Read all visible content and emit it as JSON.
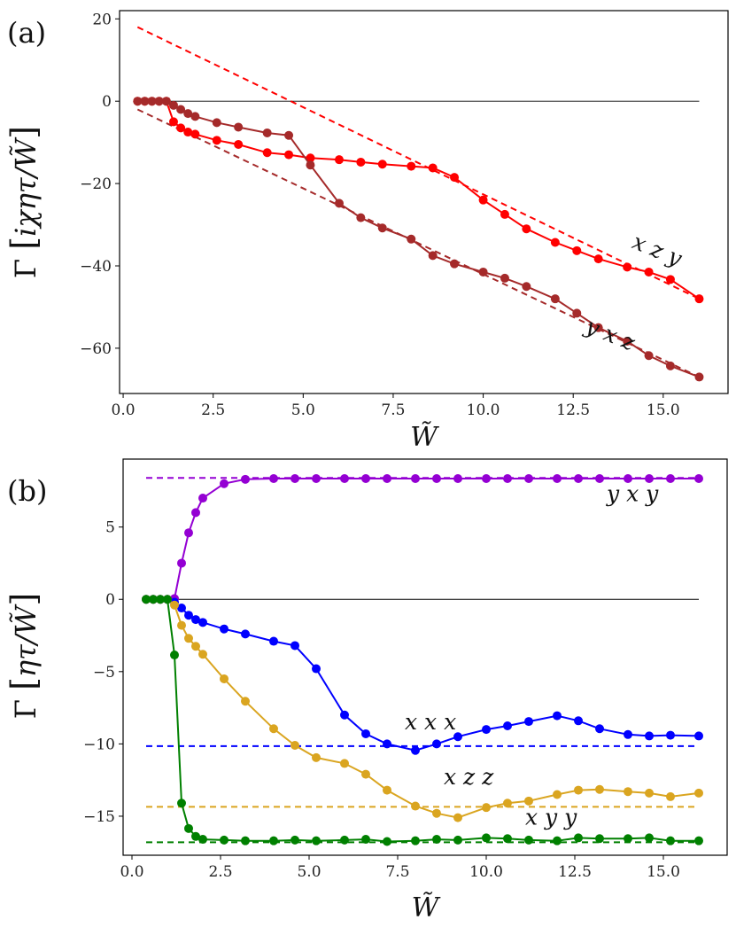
{
  "chart_data": [
    {
      "type": "line",
      "panel": "(a)",
      "xlabel": "W̃",
      "ylabel_prefix": "Γ",
      "ylabel_inner": "iχητ/W̃",
      "xlim": [
        -0.1,
        16.8
      ],
      "ylim": [
        -71,
        22
      ],
      "xticks": [
        "0.0",
        "2.5",
        "5.0",
        "7.5",
        "10.0",
        "12.5",
        "15.0"
      ],
      "xtick_values": [
        0,
        2.5,
        5,
        7.5,
        10,
        12.5,
        15
      ],
      "yticks": [
        "20",
        "0",
        "−20",
        "−40",
        "−60"
      ],
      "ytick_values": [
        20,
        0,
        -20,
        -40,
        -60
      ],
      "zero_line": true,
      "series": [
        {
          "name": "x z y",
          "color": "#ff0000",
          "x": [
            0.4,
            0.6,
            0.8,
            1.0,
            1.2,
            1.4,
            1.6,
            1.8,
            2.0,
            2.6,
            3.2,
            4.0,
            4.6,
            5.2,
            6.0,
            6.6,
            7.2,
            8.0,
            8.6,
            9.2,
            10.0,
            10.6,
            11.2,
            12.0,
            12.6,
            13.2,
            14.0,
            14.6,
            15.2,
            16.0
          ],
          "y": [
            0,
            0,
            0,
            0,
            0,
            -5,
            -6.5,
            -7.5,
            -8,
            -9.5,
            -10.5,
            -12.5,
            -13,
            -13.8,
            -14.2,
            -14.8,
            -15.3,
            -15.8,
            -16.2,
            -18.5,
            -24,
            -27.5,
            -31,
            -34.3,
            -36.3,
            -38.3,
            -40.3,
            -41.5,
            -43.3,
            -48
          ]
        },
        {
          "name": "y x z",
          "color": "#a52a2a",
          "x": [
            0.4,
            0.6,
            0.8,
            1.0,
            1.2,
            1.4,
            1.6,
            1.8,
            2.0,
            2.6,
            3.2,
            4.0,
            4.6,
            5.2,
            6.0,
            6.6,
            7.2,
            8.0,
            8.6,
            9.2,
            10.0,
            10.6,
            11.2,
            12.0,
            12.6,
            13.2,
            14.0,
            14.6,
            15.2,
            16.0
          ],
          "y": [
            0,
            0,
            0,
            0,
            0,
            -1,
            -2,
            -3,
            -3.7,
            -5.2,
            -6.3,
            -7.7,
            -8.3,
            -15.5,
            -24.8,
            -28.3,
            -30.8,
            -33.5,
            -37.5,
            -39.5,
            -41.5,
            -43,
            -45,
            -48,
            -51.5,
            -55,
            -58.3,
            -61.8,
            -64.3,
            -67
          ]
        }
      ],
      "fit_lines": [
        {
          "color": "#ff0000",
          "x": [
            0.4,
            16.0
          ],
          "y": [
            18,
            -48
          ]
        },
        {
          "color": "#a52a2a",
          "x": [
            0.4,
            16.0
          ],
          "y": [
            -2,
            -67
          ]
        }
      ],
      "annotations": [
        {
          "text": "x z y",
          "x": 14.1,
          "y": -35.5,
          "angle": 22
        },
        {
          "text": "y x z",
          "x": 12.8,
          "y": -56,
          "angle": 22
        }
      ]
    },
    {
      "type": "line",
      "panel": "(b)",
      "xlabel": "W̃",
      "ylabel_prefix": "Γ",
      "ylabel_inner": "ητ/W̃",
      "xlim": [
        -0.25,
        16.8
      ],
      "ylim": [
        -17.7,
        9.7
      ],
      "xticks": [
        "0.0",
        "2.5",
        "5.0",
        "7.5",
        "10.0",
        "12.5",
        "15.0"
      ],
      "xtick_values": [
        0,
        2.5,
        5,
        7.5,
        10,
        12.5,
        15
      ],
      "yticks": [
        "5",
        "0",
        "−5",
        "−10",
        "−15"
      ],
      "ytick_values": [
        5,
        0,
        -5,
        -10,
        -15
      ],
      "zero_line": true,
      "series": [
        {
          "name": "y x y",
          "color": "#9400d3",
          "x": [
            0.4,
            0.6,
            0.8,
            1.0,
            1.2,
            1.4,
            1.6,
            1.8,
            2.0,
            2.6,
            3.2,
            4.0,
            4.6,
            5.2,
            6.0,
            6.6,
            7.2,
            8.0,
            8.6,
            9.2,
            10.0,
            10.6,
            11.2,
            12.0,
            12.6,
            13.2,
            14.0,
            14.6,
            15.2,
            16.0
          ],
          "y": [
            0,
            0,
            0,
            0,
            0.05,
            2.5,
            4.6,
            6.0,
            7.0,
            8.0,
            8.3,
            8.35,
            8.35,
            8.35,
            8.35,
            8.35,
            8.35,
            8.35,
            8.35,
            8.35,
            8.35,
            8.35,
            8.35,
            8.35,
            8.35,
            8.35,
            8.35,
            8.35,
            8.35,
            8.35
          ]
        },
        {
          "name": "x x x",
          "color": "#0000ff",
          "x": [
            0.4,
            0.6,
            0.8,
            1.0,
            1.2,
            1.4,
            1.6,
            1.8,
            2.0,
            2.6,
            3.2,
            4.0,
            4.6,
            5.2,
            6.0,
            6.6,
            7.2,
            8.0,
            8.6,
            9.2,
            10.0,
            10.6,
            11.2,
            12.0,
            12.6,
            13.2,
            14.0,
            14.6,
            15.2,
            16.0
          ],
          "y": [
            0,
            0,
            0,
            0,
            -0.2,
            -0.6,
            -1.1,
            -1.4,
            -1.6,
            -2.05,
            -2.4,
            -2.9,
            -3.2,
            -4.8,
            -8.0,
            -9.3,
            -10.0,
            -10.45,
            -10.0,
            -9.5,
            -9.0,
            -8.75,
            -8.45,
            -8.05,
            -8.4,
            -8.95,
            -9.35,
            -9.45,
            -9.4,
            -9.45
          ]
        },
        {
          "name": "x z z",
          "color": "#daa520",
          "x": [
            0.4,
            0.6,
            0.8,
            1.0,
            1.2,
            1.4,
            1.6,
            1.8,
            2.0,
            2.6,
            3.2,
            4.0,
            4.6,
            5.2,
            6.0,
            6.6,
            7.2,
            8.0,
            8.6,
            9.2,
            10.0,
            10.6,
            11.2,
            12.0,
            12.6,
            13.2,
            14.0,
            14.6,
            15.2,
            16.0
          ],
          "y": [
            0,
            0,
            0,
            0,
            -0.4,
            -1.8,
            -2.7,
            -3.25,
            -3.8,
            -5.5,
            -7.05,
            -8.95,
            -10.1,
            -10.95,
            -11.35,
            -12.1,
            -13.2,
            -14.3,
            -14.8,
            -15.1,
            -14.4,
            -14.1,
            -13.95,
            -13.5,
            -13.2,
            -13.15,
            -13.3,
            -13.4,
            -13.65,
            -13.4
          ]
        },
        {
          "name": "x y y",
          "color": "#008000",
          "x": [
            0.4,
            0.6,
            0.8,
            1.0,
            1.2,
            1.4,
            1.6,
            1.8,
            2.0,
            2.6,
            3.2,
            4.0,
            4.6,
            5.2,
            6.0,
            6.6,
            7.2,
            8.0,
            8.6,
            9.2,
            10.0,
            10.6,
            11.2,
            12.0,
            12.6,
            13.2,
            14.0,
            14.6,
            15.2,
            16.0
          ],
          "y": [
            0,
            0,
            0,
            0,
            -3.85,
            -14.1,
            -15.85,
            -16.4,
            -16.6,
            -16.65,
            -16.7,
            -16.7,
            -16.65,
            -16.7,
            -16.65,
            -16.6,
            -16.75,
            -16.7,
            -16.6,
            -16.65,
            -16.5,
            -16.55,
            -16.65,
            -16.7,
            -16.5,
            -16.55,
            -16.55,
            -16.5,
            -16.7,
            -16.7
          ]
        }
      ],
      "fit_lines": [
        {
          "color": "#9400d3",
          "x": [
            0.4,
            16.0
          ],
          "y": [
            8.4,
            8.4
          ]
        },
        {
          "color": "#0000ff",
          "x": [
            0.4,
            16.0
          ],
          "y": [
            -10.15,
            -10.15
          ]
        },
        {
          "color": "#daa520",
          "x": [
            0.4,
            16.0
          ],
          "y": [
            -14.35,
            -14.35
          ]
        },
        {
          "color": "#008000",
          "x": [
            0.4,
            16.0
          ],
          "y": [
            -16.8,
            -16.8
          ]
        }
      ],
      "annotations": [
        {
          "text": "y x y",
          "x": 13.4,
          "y": 6.8,
          "angle": 0
        },
        {
          "text": "x x x",
          "x": 7.7,
          "y": -9.0,
          "angle": 0
        },
        {
          "text": "x z z",
          "x": 8.8,
          "y": -12.8,
          "angle": 0
        },
        {
          "text": "x y y",
          "x": 11.1,
          "y": -15.6,
          "angle": 0
        }
      ]
    }
  ]
}
